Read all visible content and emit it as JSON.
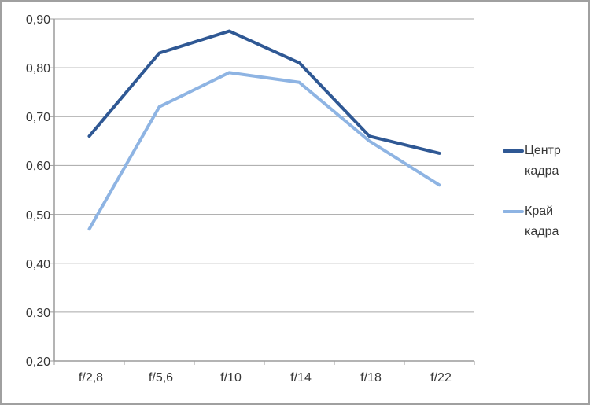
{
  "chart": {
    "background": "#FFFFFF",
    "border_color": "#A0A0A0",
    "gridline_color": "#A6A6A6",
    "axis_color": "#9C9C9C",
    "text_color": "#363636"
  },
  "chart_data": {
    "type": "line",
    "title": "",
    "xlabel": "",
    "ylabel": "",
    "categories": [
      "f/2,8",
      "f/5,6",
      "f/10",
      "f/14",
      "f/18",
      "f/22"
    ],
    "series": [
      {
        "name": "Центр кадра",
        "color": "#2F5894",
        "values": [
          0.66,
          0.83,
          0.875,
          0.81,
          0.66,
          0.625
        ]
      },
      {
        "name": "Край кадра",
        "color": "#8EB4E3",
        "values": [
          0.47,
          0.72,
          0.79,
          0.77,
          0.65,
          0.56
        ]
      }
    ],
    "ylim": [
      0.2,
      0.9
    ],
    "ytick_step": 0.1,
    "ytick_labels": [
      "0,90",
      "0,80",
      "0,70",
      "0,60",
      "0,50",
      "0,40",
      "0,30",
      "0,20"
    ],
    "ytick_values": [
      0.9,
      0.8,
      0.7,
      0.6,
      0.5,
      0.4,
      0.3,
      0.2
    ],
    "grid": true,
    "legend_position": "right-outside"
  }
}
